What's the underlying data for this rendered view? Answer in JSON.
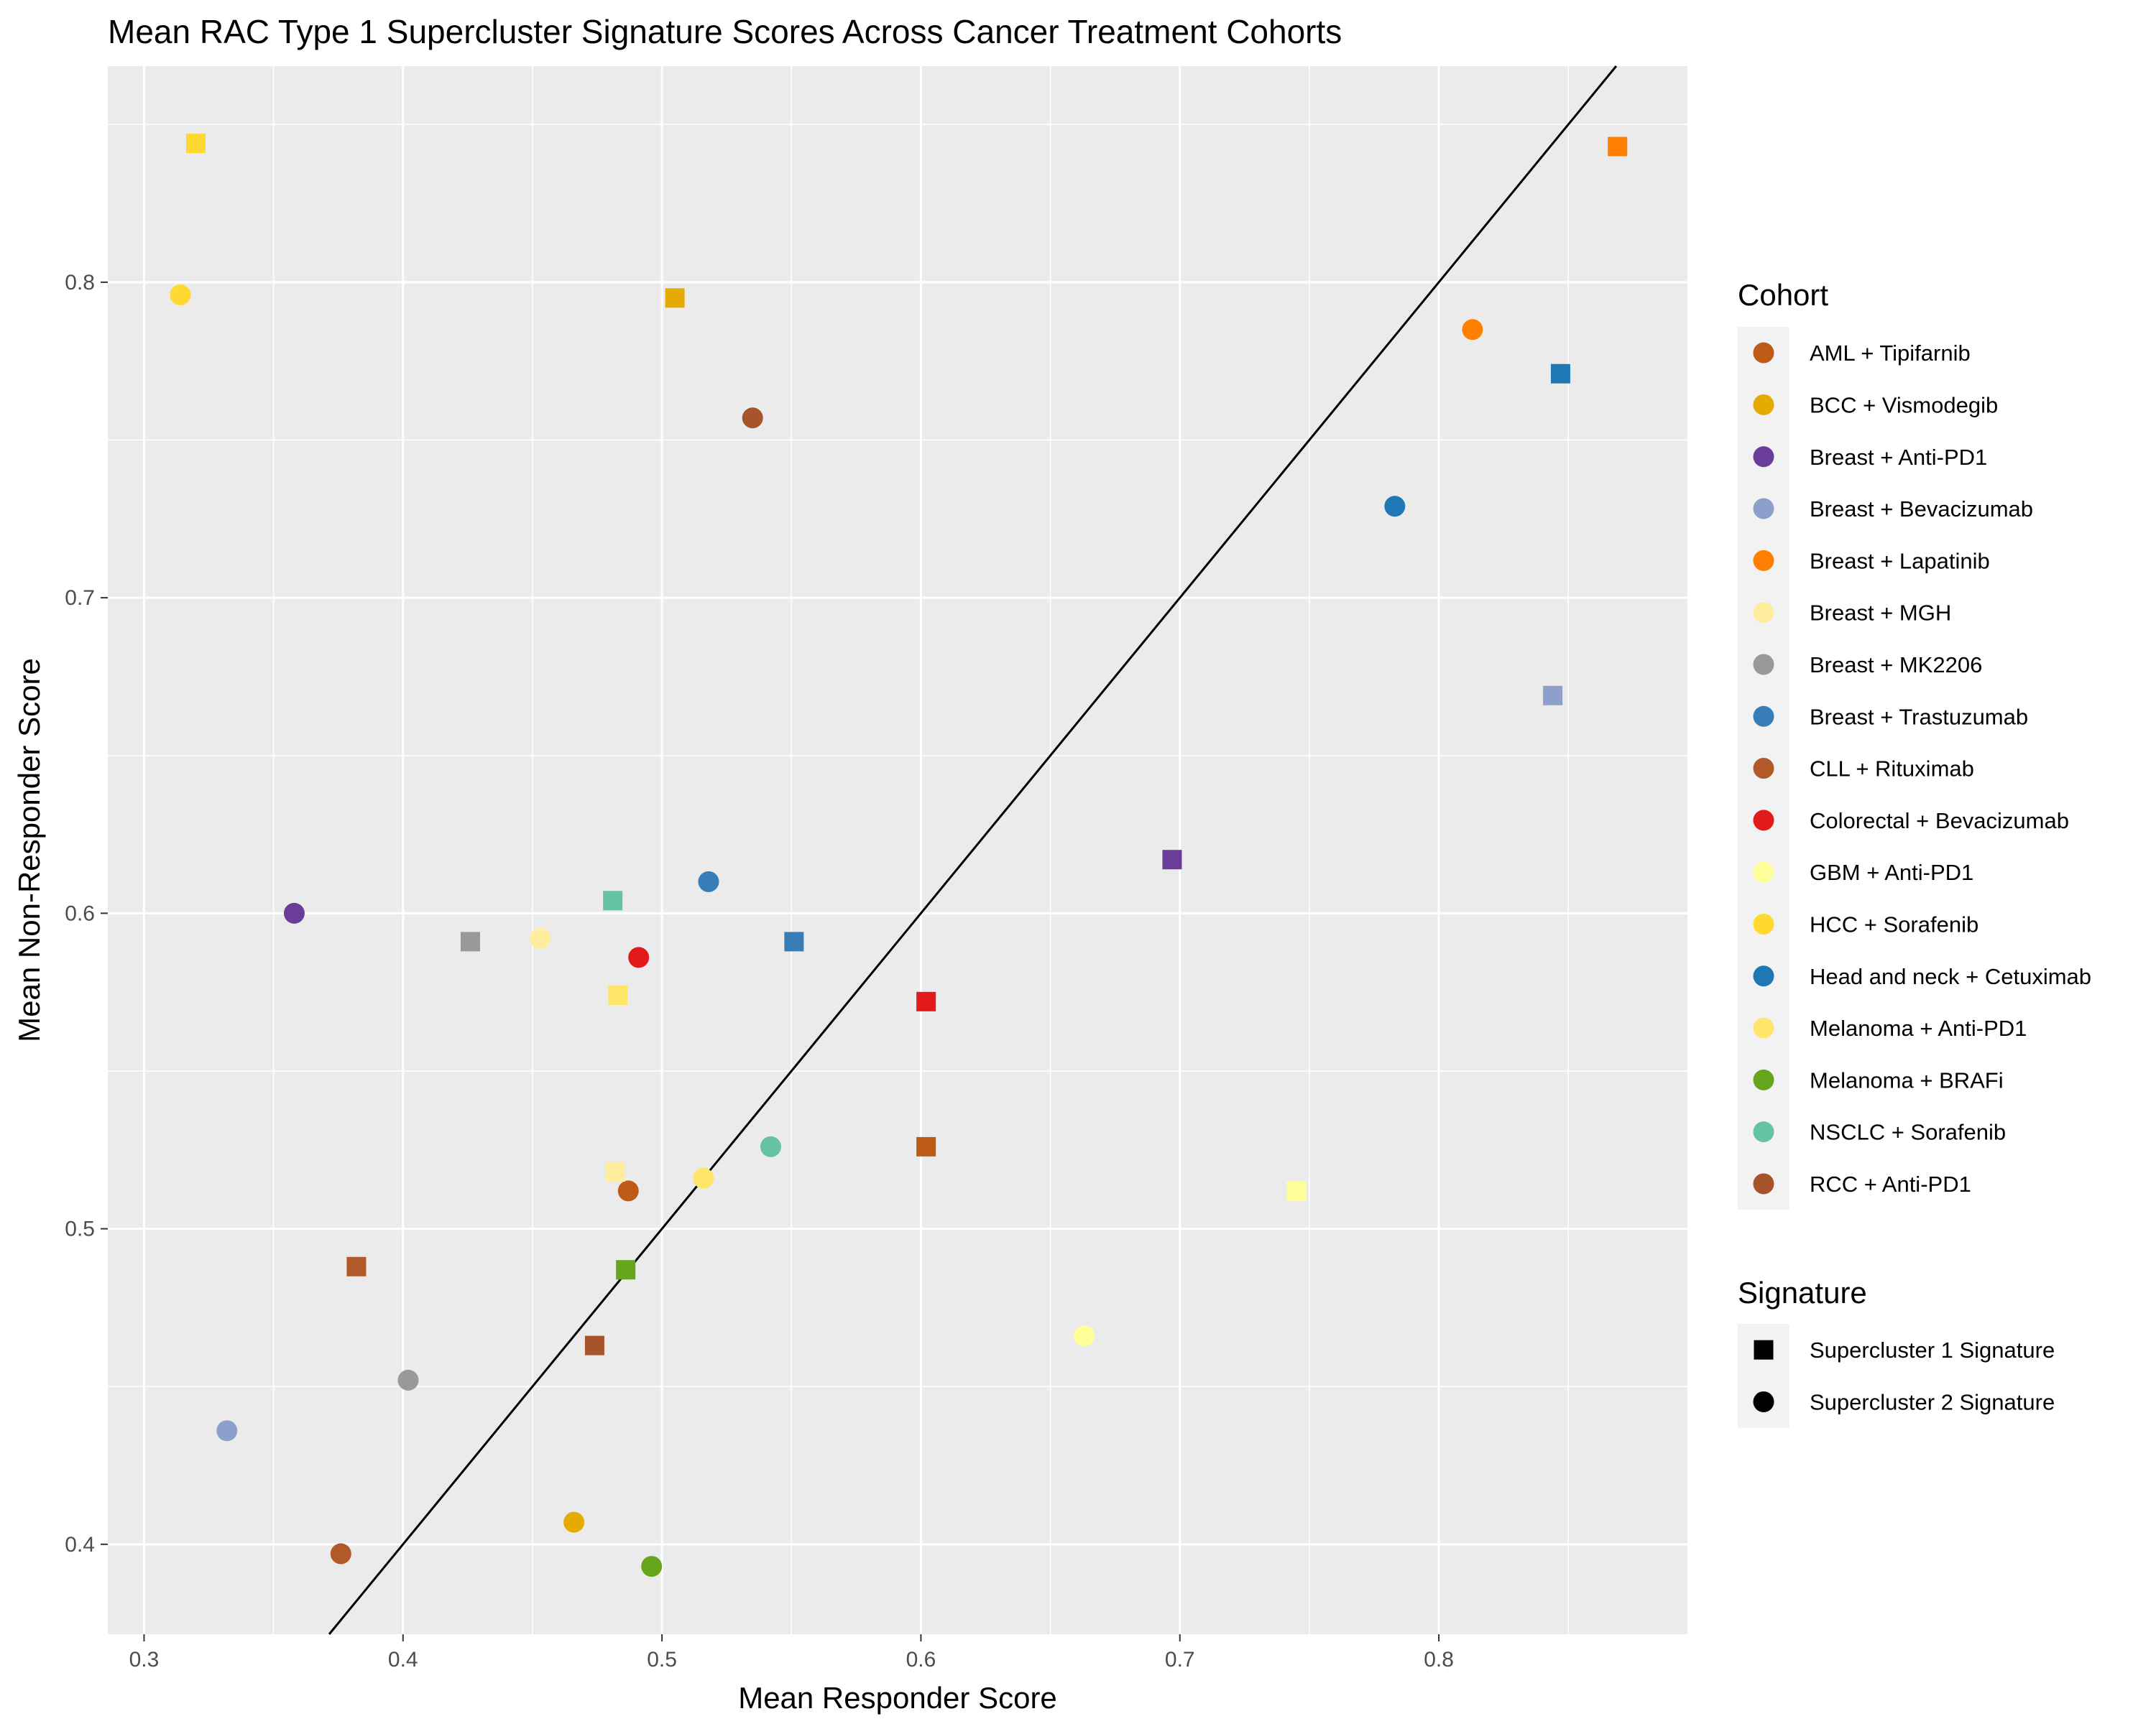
{
  "chart_data": {
    "type": "scatter",
    "title": "Mean RAC Type 1 Supercluster Signature Scores Across Cancer Treatment Cohorts",
    "xlabel": "Mean Responder Score",
    "ylabel": "Mean Non-Responder Score",
    "xlim": [
      0.286,
      0.896
    ],
    "ylim": [
      0.3715,
      0.8685
    ],
    "x_ticks": [
      0.3,
      0.4,
      0.5,
      0.6,
      0.7,
      0.8
    ],
    "y_ticks": [
      0.4,
      0.5,
      0.6,
      0.7,
      0.8
    ],
    "x_tick_labels": [
      "0.3",
      "0.4",
      "0.5",
      "0.6",
      "0.7",
      "0.8"
    ],
    "y_tick_labels": [
      "0.4",
      "0.5",
      "0.6",
      "0.7",
      "0.8"
    ],
    "grid": true,
    "reference_line": {
      "slope": 1,
      "intercept": 0
    },
    "legend_position": "right",
    "legend_cohort_title": "Cohort",
    "legend_signature_title": "Signature",
    "cohorts": [
      {
        "name": "AML + Tipifarnib",
        "color": "#BF5B17"
      },
      {
        "name": "BCC + Vismodegib",
        "color": "#E6AB02"
      },
      {
        "name": "Breast + Anti-PD1",
        "color": "#6A3D9A"
      },
      {
        "name": "Breast + Bevacizumab",
        "color": "#8DA0CB"
      },
      {
        "name": "Breast + Lapatinib",
        "color": "#FF7F00"
      },
      {
        "name": "Breast + MGH",
        "color": "#FFED9E"
      },
      {
        "name": "Breast + MK2206",
        "color": "#999999"
      },
      {
        "name": "Breast + Trastuzumab",
        "color": "#377EB8"
      },
      {
        "name": "CLL + Rituximab",
        "color": "#B15928"
      },
      {
        "name": "Colorectal + Bevacizumab",
        "color": "#E31A1C"
      },
      {
        "name": "GBM + Anti-PD1",
        "color": "#FFFF99"
      },
      {
        "name": "HCC + Sorafenib",
        "color": "#FFD92F"
      },
      {
        "name": "Head and neck + Cetuximab",
        "color": "#1F78B4"
      },
      {
        "name": "Melanoma + Anti-PD1",
        "color": "#FFE66B"
      },
      {
        "name": "Melanoma + BRAFi",
        "color": "#66A61E"
      },
      {
        "name": "NSCLC + Sorafenib",
        "color": "#66C2A5"
      },
      {
        "name": "RCC + Anti-PD1",
        "color": "#A6542B"
      }
    ],
    "signatures": [
      {
        "name": "Supercluster 1 Signature",
        "shape": "square"
      },
      {
        "name": "Supercluster 2 Signature",
        "shape": "circle"
      }
    ],
    "points": [
      {
        "cohort": "AML + Tipifarnib",
        "signature": "Supercluster 1 Signature",
        "x": 0.602,
        "y": 0.526
      },
      {
        "cohort": "AML + Tipifarnib",
        "signature": "Supercluster 2 Signature",
        "x": 0.487,
        "y": 0.512
      },
      {
        "cohort": "BCC + Vismodegib",
        "signature": "Supercluster 1 Signature",
        "x": 0.505,
        "y": 0.795
      },
      {
        "cohort": "BCC + Vismodegib",
        "signature": "Supercluster 2 Signature",
        "x": 0.466,
        "y": 0.407
      },
      {
        "cohort": "Breast + Anti-PD1",
        "signature": "Supercluster 1 Signature",
        "x": 0.697,
        "y": 0.617
      },
      {
        "cohort": "Breast + Anti-PD1",
        "signature": "Supercluster 2 Signature",
        "x": 0.358,
        "y": 0.6
      },
      {
        "cohort": "Breast + Bevacizumab",
        "signature": "Supercluster 1 Signature",
        "x": 0.844,
        "y": 0.669
      },
      {
        "cohort": "Breast + Bevacizumab",
        "signature": "Supercluster 2 Signature",
        "x": 0.332,
        "y": 0.436
      },
      {
        "cohort": "Breast + Lapatinib",
        "signature": "Supercluster 1 Signature",
        "x": 0.869,
        "y": 0.843
      },
      {
        "cohort": "Breast + Lapatinib",
        "signature": "Supercluster 2 Signature",
        "x": 0.813,
        "y": 0.785
      },
      {
        "cohort": "Breast + MGH",
        "signature": "Supercluster 1 Signature",
        "x": 0.482,
        "y": 0.518
      },
      {
        "cohort": "Breast + MGH",
        "signature": "Supercluster 2 Signature",
        "x": 0.453,
        "y": 0.592
      },
      {
        "cohort": "Breast + MK2206",
        "signature": "Supercluster 1 Signature",
        "x": 0.426,
        "y": 0.591
      },
      {
        "cohort": "Breast + MK2206",
        "signature": "Supercluster 2 Signature",
        "x": 0.402,
        "y": 0.452
      },
      {
        "cohort": "Breast + Trastuzumab",
        "signature": "Supercluster 1 Signature",
        "x": 0.551,
        "y": 0.591
      },
      {
        "cohort": "Breast + Trastuzumab",
        "signature": "Supercluster 2 Signature",
        "x": 0.518,
        "y": 0.61
      },
      {
        "cohort": "CLL + Rituximab",
        "signature": "Supercluster 1 Signature",
        "x": 0.382,
        "y": 0.488
      },
      {
        "cohort": "CLL + Rituximab",
        "signature": "Supercluster 2 Signature",
        "x": 0.376,
        "y": 0.397
      },
      {
        "cohort": "Colorectal + Bevacizumab",
        "signature": "Supercluster 1 Signature",
        "x": 0.602,
        "y": 0.572
      },
      {
        "cohort": "Colorectal + Bevacizumab",
        "signature": "Supercluster 2 Signature",
        "x": 0.491,
        "y": 0.586
      },
      {
        "cohort": "GBM + Anti-PD1",
        "signature": "Supercluster 1 Signature",
        "x": 0.745,
        "y": 0.512
      },
      {
        "cohort": "GBM + Anti-PD1",
        "signature": "Supercluster 2 Signature",
        "x": 0.663,
        "y": 0.466
      },
      {
        "cohort": "HCC + Sorafenib",
        "signature": "Supercluster 1 Signature",
        "x": 0.32,
        "y": 0.844
      },
      {
        "cohort": "HCC + Sorafenib",
        "signature": "Supercluster 2 Signature",
        "x": 0.314,
        "y": 0.796
      },
      {
        "cohort": "Head and neck + Cetuximab",
        "signature": "Supercluster 1 Signature",
        "x": 0.847,
        "y": 0.771
      },
      {
        "cohort": "Head and neck + Cetuximab",
        "signature": "Supercluster 2 Signature",
        "x": 0.783,
        "y": 0.729
      },
      {
        "cohort": "Melanoma + Anti-PD1",
        "signature": "Supercluster 1 Signature",
        "x": 0.483,
        "y": 0.574
      },
      {
        "cohort": "Melanoma + Anti-PD1",
        "signature": "Supercluster 2 Signature",
        "x": 0.516,
        "y": 0.516
      },
      {
        "cohort": "Melanoma + BRAFi",
        "signature": "Supercluster 1 Signature",
        "x": 0.486,
        "y": 0.487
      },
      {
        "cohort": "Melanoma + BRAFi",
        "signature": "Supercluster 2 Signature",
        "x": 0.496,
        "y": 0.393
      },
      {
        "cohort": "NSCLC + Sorafenib",
        "signature": "Supercluster 1 Signature",
        "x": 0.481,
        "y": 0.604
      },
      {
        "cohort": "NSCLC + Sorafenib",
        "signature": "Supercluster 2 Signature",
        "x": 0.542,
        "y": 0.526
      },
      {
        "cohort": "RCC + Anti-PD1",
        "signature": "Supercluster 1 Signature",
        "x": 0.474,
        "y": 0.463
      },
      {
        "cohort": "RCC + Anti-PD1",
        "signature": "Supercluster 2 Signature",
        "x": 0.535,
        "y": 0.757
      }
    ]
  }
}
